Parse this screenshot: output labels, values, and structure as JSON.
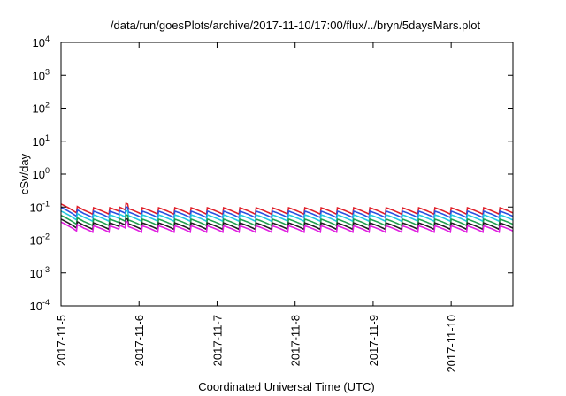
{
  "chart_data": {
    "type": "line",
    "title": "/data/run/goesPlots/archive/2017-11-10/17:00/flux/../bryn/5daysMars.plot",
    "xlabel": "Coordinated Universal Time (UTC)",
    "ylabel": "cSv/day",
    "yscale": "log",
    "ylim": [
      0.0001,
      10000
    ],
    "xlim": [
      "2017-11-05 00:00",
      "2017-11-10 19:00"
    ],
    "x_ticks": [
      "2017-11-5",
      "2017-11-6",
      "2017-11-7",
      "2017-11-8",
      "2017-11-9",
      "2017-11-10"
    ],
    "y_ticks": [
      {
        "value": 0.0001,
        "base": "10",
        "exp": "-4"
      },
      {
        "value": 0.001,
        "base": "10",
        "exp": "-3"
      },
      {
        "value": 0.01,
        "base": "10",
        "exp": "-2"
      },
      {
        "value": 0.1,
        "base": "10",
        "exp": "-1"
      },
      {
        "value": 1,
        "base": "10",
        "exp": "0"
      },
      {
        "value": 10,
        "base": "10",
        "exp": "1"
      },
      {
        "value": 100,
        "base": "10",
        "exp": "2"
      },
      {
        "value": 1000,
        "base": "10",
        "exp": "3"
      },
      {
        "value": 10000,
        "base": "10",
        "exp": "4"
      }
    ],
    "grid": false,
    "legend": "none",
    "series": [
      {
        "color": "#e0202a",
        "base_value": 0.095,
        "cycle_low_factor": 0.62
      },
      {
        "color": "#2a50e0",
        "base_value": 0.075,
        "cycle_low_factor": 0.62
      },
      {
        "color": "#20c8e0",
        "base_value": 0.058,
        "cycle_low_factor": 0.62
      },
      {
        "color": "#20a050",
        "base_value": 0.043,
        "cycle_low_factor": 0.62
      },
      {
        "color": "#202020",
        "base_value": 0.033,
        "cycle_low_factor": 0.62
      },
      {
        "color": "#e020e0",
        "base_value": 0.027,
        "cycle_low_factor": 0.62
      }
    ],
    "cycle_period_hours": 5,
    "early_bump": {
      "start": "2017-11-05 00:00",
      "end": "2017-11-05 07:00",
      "factor": 1.3
    },
    "mid_bump": {
      "start": "2017-11-05 18:00",
      "end": "2017-11-05 20:30",
      "factor": 1.35
    }
  }
}
